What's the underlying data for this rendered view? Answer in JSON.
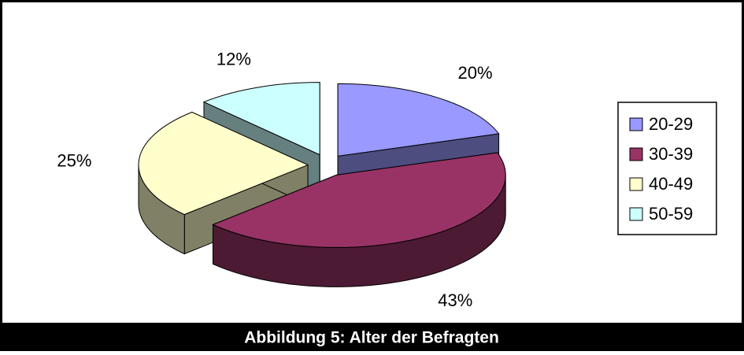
{
  "chart_data": {
    "type": "pie",
    "title": "Abbildung 5: Alter der Befragten",
    "categories": [
      "20-29",
      "30-39",
      "40-49",
      "50-59"
    ],
    "values": [
      20,
      43,
      25,
      12
    ],
    "value_labels": [
      "20%",
      "43%",
      "25%",
      "12%"
    ],
    "colors": [
      "#9999ff",
      "#993366",
      "#ffffcc",
      "#ccffff"
    ],
    "legend": "right"
  }
}
